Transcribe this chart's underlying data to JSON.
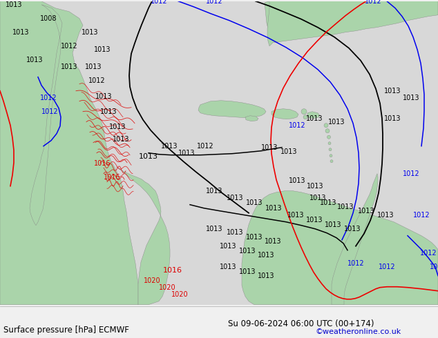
{
  "title_left": "Surface pressure [hPa] ECMWF",
  "title_right": "Su 09-06-2024 06:00 UTC (00+174)",
  "credit": "©weatheronline.co.uk",
  "bg_color": "#d8d8d8",
  "land_color": "#aad4aa",
  "ocean_color": "#d8d8d8",
  "label_fontsize": 8,
  "credit_color": "#0000cc",
  "bottom_text_color": "#000000",
  "bottom_bar_color": "#f0f0f0"
}
